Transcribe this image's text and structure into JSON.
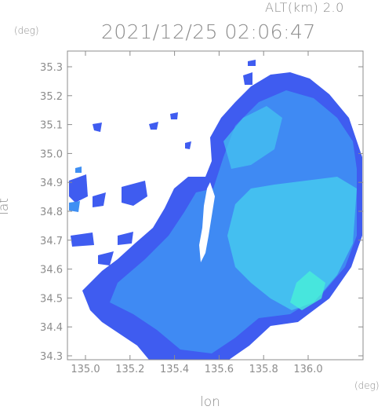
{
  "header": {
    "altitude_label": "ALT(km) 2.0",
    "timestamp": "2021/12/25 02:06:47"
  },
  "axes": {
    "y_unit": "(deg)",
    "x_unit": "(deg)",
    "ylabel": "lat",
    "xlabel": "lon",
    "yticks": [
      "35.3",
      "35.2",
      "35.1",
      "35.0",
      "34.9",
      "34.8",
      "34.7",
      "34.6",
      "34.5",
      "34.4",
      "34.3"
    ],
    "xticks": [
      "135.0",
      "135.2",
      "135.4",
      "135.6",
      "135.8",
      "136.0"
    ]
  },
  "colors": {
    "axis_gray": "#8c8c8c",
    "echo_low": "#3f5cf0",
    "echo_mid": "#3f90f4",
    "echo_high": "#45d6ee",
    "echo_peak": "#48f0d8"
  }
}
